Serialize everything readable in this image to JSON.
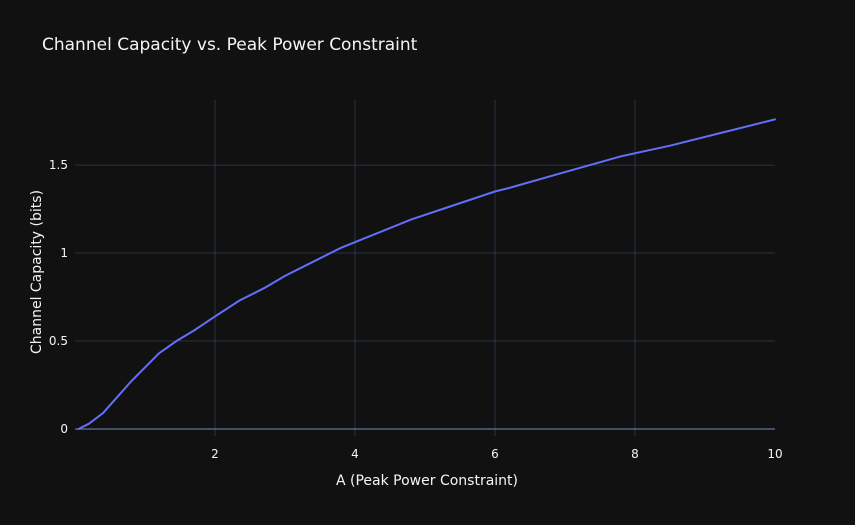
{
  "chart_data": {
    "type": "line",
    "title": "Channel Capacity vs. Peak Power Constraint",
    "xlabel": "A (Peak Power Constraint)",
    "ylabel": "Channel Capacity (bits)",
    "xlim": [
      0,
      10
    ],
    "ylim": [
      -0.04,
      1.87
    ],
    "xticks": [
      2,
      4,
      6,
      8,
      10
    ],
    "xtick_labels": [
      "2",
      "4",
      "6",
      "8",
      "10"
    ],
    "yticks": [
      0,
      0.5,
      1,
      1.5
    ],
    "ytick_labels": [
      "0",
      "0.5",
      "1",
      "1.5"
    ],
    "grid": true,
    "colors": {
      "background": "#111111",
      "line": "#636efa"
    },
    "series": [
      {
        "color": "#636efa",
        "x": [
          0.05,
          0.2,
          0.4,
          0.6,
          0.8,
          1.0,
          1.2,
          1.45,
          1.7,
          2.0,
          2.35,
          2.7,
          3.0,
          3.4,
          3.8,
          4.3,
          4.8,
          5.4,
          6.0,
          6.2,
          7.0,
          7.8,
          8.5,
          9.2,
          10.0
        ],
        "y": [
          0.0,
          0.03,
          0.09,
          0.18,
          0.27,
          0.35,
          0.43,
          0.5,
          0.56,
          0.64,
          0.73,
          0.8,
          0.87,
          0.95,
          1.03,
          1.11,
          1.19,
          1.27,
          1.35,
          1.37,
          1.46,
          1.55,
          1.61,
          1.68,
          1.76
        ]
      }
    ]
  }
}
